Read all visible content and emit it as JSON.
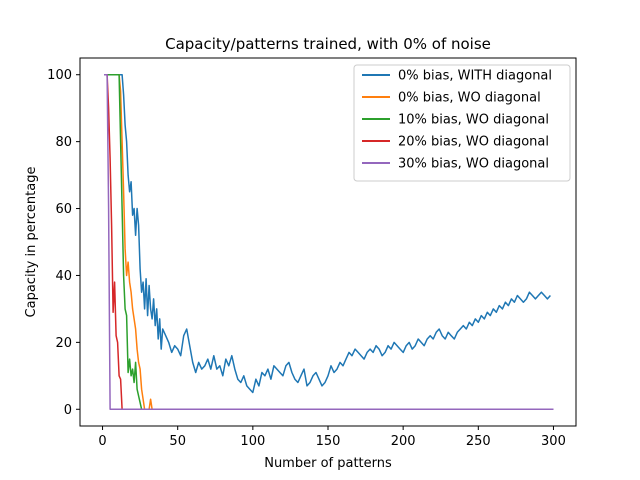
{
  "chart_data": {
    "type": "line",
    "title": "Capacity/patterns trained, with 0% of noise",
    "xlabel": "Number of patterns",
    "ylabel": "Capacity in percentage",
    "xlim": [
      -15,
      315
    ],
    "ylim": [
      -5,
      105
    ],
    "xticks": [
      0,
      50,
      100,
      150,
      200,
      250,
      300
    ],
    "yticks": [
      0,
      20,
      40,
      60,
      80,
      100
    ],
    "grid": false,
    "legend_position": "top-right",
    "series": [
      {
        "name": "0% bias, WITH diagonal",
        "color": "#1f77b4",
        "x": [
          1,
          3,
          5,
          7,
          9,
          11,
          12,
          13,
          14,
          15,
          16,
          17,
          18,
          19,
          20,
          21,
          22,
          23,
          24,
          25,
          26,
          27,
          28,
          29,
          30,
          31,
          32,
          33,
          34,
          35,
          36,
          37,
          38,
          39,
          40,
          42,
          44,
          46,
          48,
          50,
          52,
          54,
          56,
          58,
          60,
          62,
          64,
          66,
          68,
          70,
          72,
          74,
          76,
          78,
          80,
          82,
          84,
          86,
          88,
          90,
          92,
          94,
          96,
          98,
          100,
          102,
          104,
          106,
          108,
          110,
          112,
          114,
          116,
          118,
          120,
          122,
          124,
          126,
          128,
          130,
          132,
          134,
          136,
          138,
          140,
          142,
          144,
          146,
          148,
          150,
          152,
          154,
          156,
          158,
          160,
          162,
          164,
          166,
          168,
          170,
          172,
          174,
          176,
          178,
          180,
          182,
          184,
          186,
          188,
          190,
          192,
          194,
          196,
          198,
          200,
          202,
          204,
          206,
          208,
          210,
          212,
          214,
          216,
          218,
          220,
          222,
          224,
          226,
          228,
          230,
          232,
          234,
          236,
          238,
          240,
          242,
          244,
          246,
          248,
          250,
          252,
          254,
          256,
          258,
          260,
          262,
          264,
          266,
          268,
          270,
          272,
          274,
          276,
          278,
          280,
          282,
          284,
          286,
          288,
          290,
          292,
          294,
          296,
          298
        ],
        "y": [
          100,
          100,
          100,
          100,
          100,
          100,
          100,
          100,
          94,
          85,
          80,
          70,
          65,
          68,
          58,
          60,
          52,
          60,
          55,
          42,
          35,
          38,
          30,
          39,
          28,
          37,
          30,
          27,
          33,
          25,
          30,
          21,
          27,
          18,
          24,
          22,
          20,
          17,
          19,
          18,
          16,
          22,
          24,
          19,
          14,
          11,
          14,
          12,
          13,
          15,
          12,
          16,
          12,
          13,
          10,
          15,
          13,
          16,
          12,
          9,
          8,
          10,
          7,
          6,
          5,
          9,
          7,
          11,
          10,
          12,
          9,
          13,
          12,
          11,
          10,
          13,
          14,
          11,
          9,
          8,
          10,
          12,
          7,
          8,
          10,
          11,
          9,
          7,
          8,
          10,
          13,
          11,
          12,
          14,
          13,
          15,
          17,
          16,
          18,
          17,
          16,
          15,
          17,
          18,
          17,
          19,
          18,
          16,
          17,
          19,
          18,
          20,
          19,
          18,
          17,
          19,
          20,
          18,
          19,
          21,
          20,
          19,
          21,
          22,
          21,
          23,
          24,
          22,
          21,
          23,
          22,
          21,
          23,
          24,
          25,
          24,
          26,
          25,
          27,
          26,
          28,
          27,
          29,
          28,
          30,
          29,
          31,
          30,
          32,
          31,
          33,
          32,
          34,
          33,
          32,
          33,
          35,
          34,
          33,
          34,
          35,
          34,
          33,
          34
        ]
      },
      {
        "name": "0% bias, WO diagonal",
        "color": "#ff7f0e",
        "x": [
          1,
          3,
          5,
          7,
          9,
          10,
          11,
          12,
          13,
          14,
          15,
          16,
          17,
          18,
          19,
          20,
          21,
          22,
          23,
          24,
          25,
          26,
          27,
          28,
          29,
          30,
          31,
          32,
          33,
          40,
          60,
          100,
          150,
          200,
          250,
          300
        ],
        "y": [
          100,
          100,
          100,
          100,
          100,
          100,
          100,
          95,
          80,
          65,
          48,
          40,
          44,
          38,
          35,
          30,
          27,
          24,
          18,
          14,
          12,
          6,
          3,
          0,
          0,
          0,
          0,
          3,
          0,
          0,
          0,
          0,
          0,
          0,
          0,
          0
        ]
      },
      {
        "name": "10% bias, WO diagonal",
        "color": "#2ca02c",
        "x": [
          1,
          3,
          5,
          7,
          9,
          10,
          11,
          12,
          13,
          14,
          15,
          16,
          17,
          18,
          19,
          20,
          21,
          22,
          23,
          24,
          25,
          26,
          27,
          30,
          50,
          100,
          150,
          200,
          250,
          300
        ],
        "y": [
          100,
          100,
          100,
          100,
          100,
          100,
          100,
          80,
          60,
          40,
          30,
          28,
          11,
          15,
          10,
          12,
          8,
          14,
          6,
          4,
          2,
          0,
          0,
          0,
          0,
          0,
          0,
          0,
          0,
          0
        ]
      },
      {
        "name": "20% bias, WO diagonal",
        "color": "#d62728",
        "x": [
          1,
          2,
          3,
          4,
          5,
          6,
          7,
          8,
          9,
          10,
          11,
          12,
          13,
          14,
          20,
          50,
          100,
          150,
          200,
          250,
          300
        ],
        "y": [
          100,
          100,
          100,
          90,
          75,
          55,
          29,
          38,
          22,
          20,
          10,
          9,
          0,
          0,
          0,
          0,
          0,
          0,
          0,
          0,
          0
        ]
      },
      {
        "name": "30% bias, WO diagonal",
        "color": "#9467bd",
        "x": [
          1,
          2,
          3,
          4,
          5,
          6,
          10,
          50,
          100,
          150,
          200,
          250,
          300
        ],
        "y": [
          100,
          100,
          100,
          60,
          0,
          0,
          0,
          0,
          0,
          0,
          0,
          0,
          0
        ]
      }
    ]
  }
}
